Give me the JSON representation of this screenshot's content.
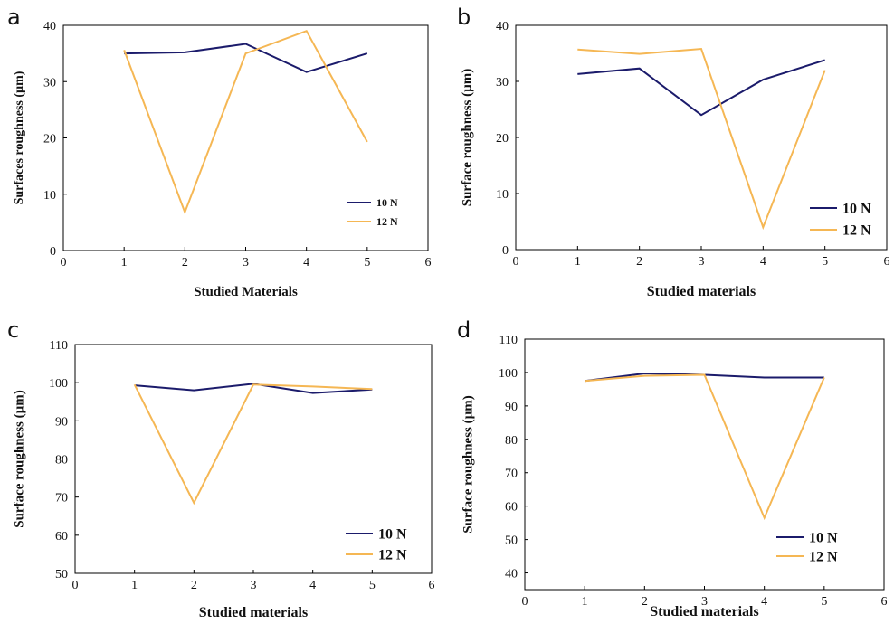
{
  "colors": {
    "series_10N": "#1b1b6b",
    "series_12N": "#f5b754"
  },
  "chart_data": [
    {
      "panel": "a",
      "type": "line",
      "xlabel": "Studied Materials",
      "ylabel": "Surfaces roughness (µm)",
      "xlim": [
        0,
        6
      ],
      "ylim": [
        0,
        40
      ],
      "xticks": [
        0,
        1,
        2,
        3,
        4,
        5,
        6
      ],
      "yticks": [
        0,
        10,
        20,
        30,
        40
      ],
      "x": [
        1,
        2,
        3,
        4,
        5
      ],
      "legend_position": "center-right",
      "series": [
        {
          "name": "10 N",
          "values": [
            35,
            35.2,
            36.7,
            31.7,
            35
          ]
        },
        {
          "name": "12 N",
          "values": [
            35.6,
            6.8,
            35,
            39,
            19.3
          ]
        }
      ]
    },
    {
      "panel": "b",
      "type": "line",
      "xlabel": "Studied materials",
      "ylabel": "Surface roughness (µm)",
      "xlim": [
        0,
        6
      ],
      "ylim": [
        0,
        40
      ],
      "xticks": [
        0,
        1,
        2,
        3,
        4,
        5,
        6
      ],
      "yticks": [
        0,
        10,
        20,
        30,
        40
      ],
      "x": [
        1,
        2,
        3,
        4,
        5
      ],
      "legend_position": "bottom-right",
      "series": [
        {
          "name": "10 N",
          "values": [
            31.3,
            32.3,
            24,
            30.3,
            33.8
          ]
        },
        {
          "name": "12 N",
          "values": [
            35.7,
            34.9,
            35.8,
            4,
            32
          ]
        }
      ]
    },
    {
      "panel": "c",
      "type": "line",
      "xlabel": "Studied materials",
      "ylabel": "Surface roughness (µm)",
      "xlim": [
        0,
        6
      ],
      "ylim": [
        50,
        110
      ],
      "xticks": [
        0,
        1,
        2,
        3,
        4,
        5,
        6
      ],
      "yticks": [
        50,
        60,
        70,
        80,
        90,
        100,
        110
      ],
      "x": [
        1,
        2,
        3,
        4,
        5
      ],
      "legend_position": "bottom-right",
      "series": [
        {
          "name": "10 N",
          "values": [
            99.3,
            98,
            99.7,
            97.3,
            98.2
          ]
        },
        {
          "name": "12 N",
          "values": [
            99.5,
            68.5,
            99.5,
            99,
            98.3
          ]
        }
      ]
    },
    {
      "panel": "d",
      "type": "line",
      "xlabel": "Studied materials",
      "ylabel": "Surface roughness (µm)",
      "xlim": [
        0,
        6
      ],
      "ylim": [
        35,
        110
      ],
      "xticks": [
        0,
        1,
        2,
        3,
        4,
        5,
        6
      ],
      "yticks": [
        40,
        50,
        60,
        70,
        80,
        90,
        100,
        110
      ],
      "x": [
        1,
        2,
        3,
        4,
        5
      ],
      "legend_position": "bottom-right",
      "series": [
        {
          "name": "10 N",
          "values": [
            97.5,
            99.7,
            99.3,
            98.5,
            98.5
          ]
        },
        {
          "name": "12 N",
          "values": [
            97.5,
            99,
            99.3,
            56.5,
            98.5
          ]
        }
      ]
    }
  ]
}
